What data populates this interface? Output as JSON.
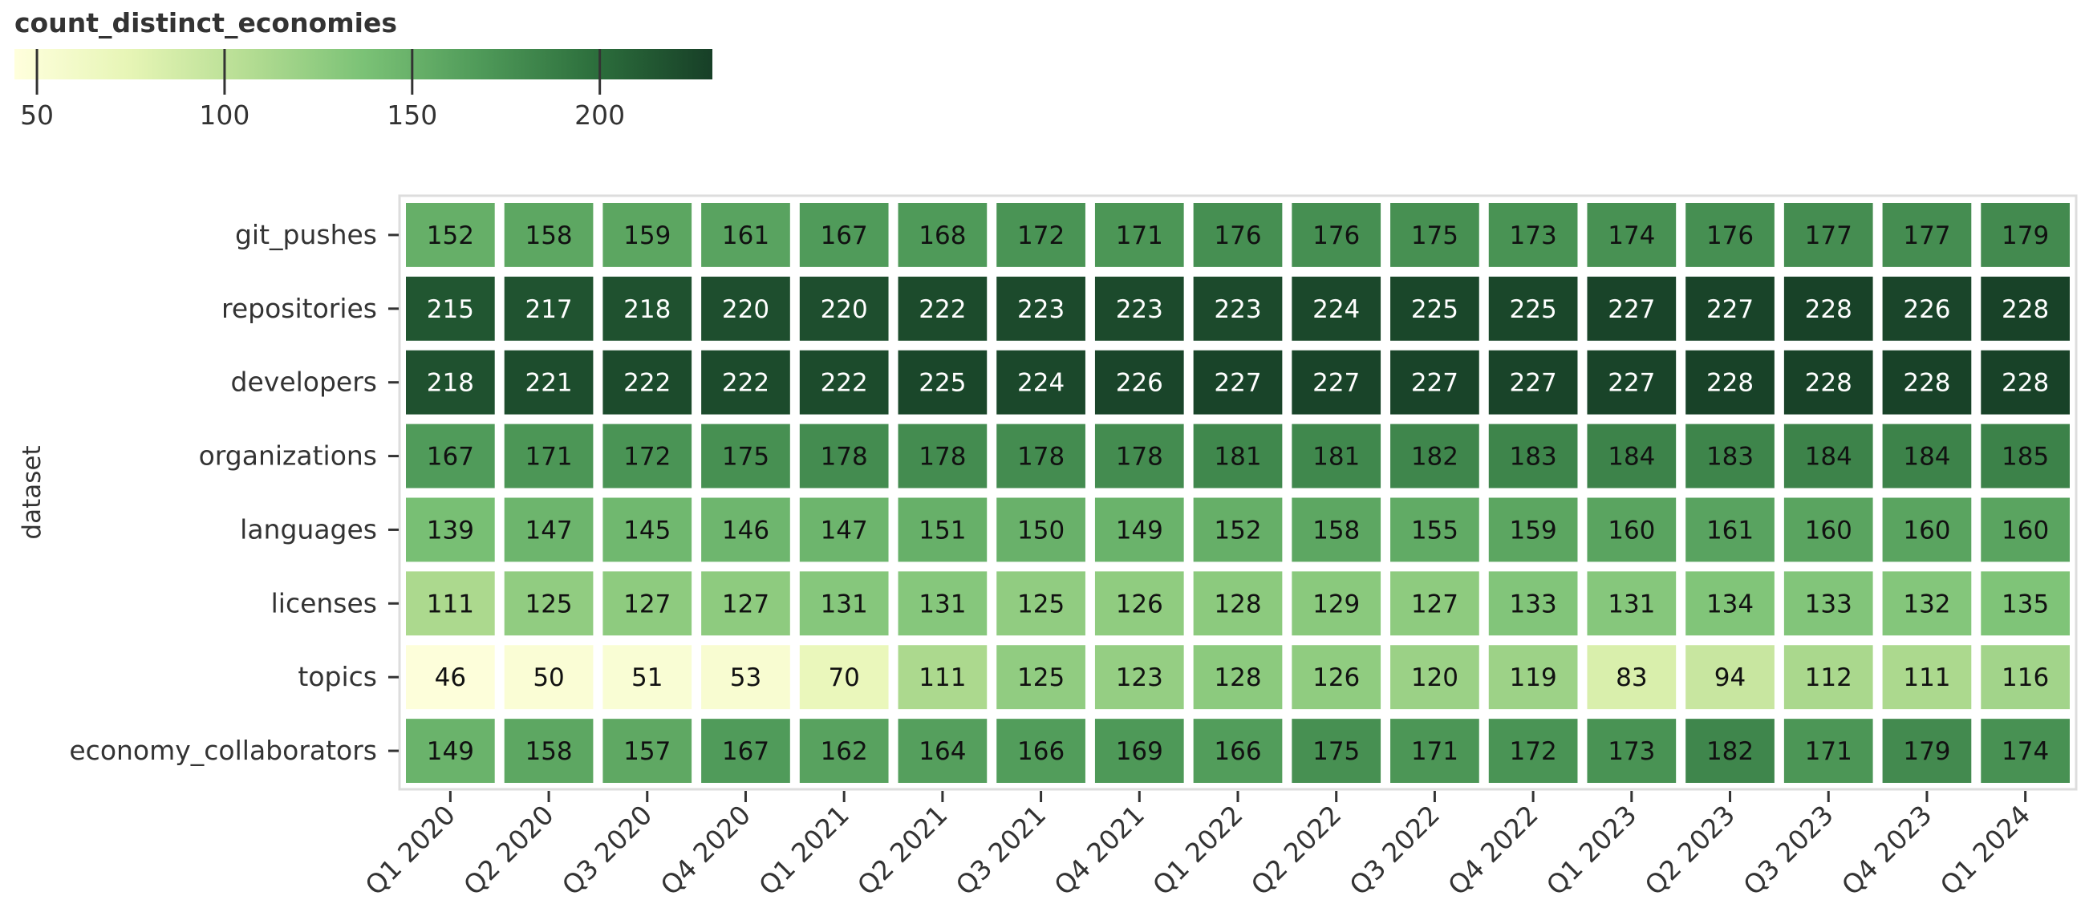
{
  "chart_data": {
    "type": "heatmap",
    "ylabel": "dataset",
    "xlabel": "",
    "legend": {
      "title": "count_distinct_economies",
      "domain": [
        44,
        230
      ],
      "ticks": [
        50,
        100,
        150,
        200
      ],
      "color_stops": [
        "#ffffdd",
        "#e6f5b5",
        "#b5dd93",
        "#7bc276",
        "#4f9a59",
        "#2c6e3c",
        "#173f27"
      ]
    },
    "x": [
      "Q1 2020",
      "Q2 2020",
      "Q3 2020",
      "Q4 2020",
      "Q1 2021",
      "Q2 2021",
      "Q3 2021",
      "Q4 2021",
      "Q1 2022",
      "Q2 2022",
      "Q3 2022",
      "Q4 2022",
      "Q1 2023",
      "Q2 2023",
      "Q3 2023",
      "Q4 2023",
      "Q1 2024"
    ],
    "y": [
      "git_pushes",
      "repositories",
      "developers",
      "organizations",
      "languages",
      "licenses",
      "topics",
      "economy_collaborators"
    ],
    "values": [
      [
        152,
        158,
        159,
        161,
        167,
        168,
        172,
        171,
        176,
        176,
        175,
        173,
        174,
        176,
        177,
        177,
        179
      ],
      [
        215,
        217,
        218,
        220,
        220,
        222,
        223,
        223,
        223,
        224,
        225,
        225,
        227,
        227,
        228,
        226,
        228
      ],
      [
        218,
        221,
        222,
        222,
        222,
        225,
        224,
        226,
        227,
        227,
        227,
        227,
        227,
        228,
        228,
        228,
        228
      ],
      [
        167,
        171,
        172,
        175,
        178,
        178,
        178,
        178,
        181,
        181,
        182,
        183,
        184,
        183,
        184,
        184,
        185
      ],
      [
        139,
        147,
        145,
        146,
        147,
        151,
        150,
        149,
        152,
        158,
        155,
        159,
        160,
        161,
        160,
        160,
        160
      ],
      [
        111,
        125,
        127,
        127,
        131,
        131,
        125,
        126,
        128,
        129,
        127,
        133,
        131,
        134,
        133,
        132,
        135
      ],
      [
        46,
        50,
        51,
        53,
        70,
        111,
        125,
        123,
        128,
        126,
        120,
        119,
        83,
        94,
        112,
        111,
        116
      ],
      [
        149,
        158,
        157,
        167,
        162,
        164,
        166,
        169,
        166,
        175,
        171,
        172,
        173,
        182,
        171,
        179,
        174
      ]
    ]
  }
}
